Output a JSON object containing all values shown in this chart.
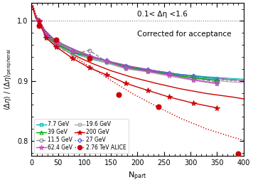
{
  "title_text1": "0.1< Δη <1.6",
  "title_text2": "Corrected for acceptance",
  "xlabel": "N$_\\mathrm{part}$",
  "ylabel": "$\\langle\\Delta\\eta\\rangle$ / $\\langle\\Delta\\eta\\rangle_{\\mathrm{peripheral}}$",
  "xlim": [
    0,
    400
  ],
  "ylim": [
    0.775,
    1.03
  ],
  "yticks": [
    0.8,
    0.9,
    1.0
  ],
  "xticks": [
    0,
    50,
    100,
    150,
    200,
    250,
    300,
    350,
    400
  ],
  "hline_y": 1.0,
  "series": [
    {
      "label": "7.7 GeV",
      "color": "#00bbbb",
      "linestyle": "-",
      "marker": "s",
      "markerfacecolor": "none",
      "markersize": 3.5,
      "linewidth": 1.0,
      "x": [
        14,
        28,
        46,
        77,
        109,
        142,
        178,
        220,
        260,
        305,
        350
      ],
      "y": [
        0.999,
        0.975,
        0.962,
        0.948,
        0.937,
        0.93,
        0.922,
        0.917,
        0.912,
        0.908,
        0.904
      ]
    },
    {
      "label": "11.5 GeV",
      "color": "#888888",
      "linestyle": "--",
      "marker": "o",
      "markerfacecolor": "none",
      "markersize": 3.5,
      "linewidth": 1.0,
      "x": [
        14,
        28,
        46,
        77,
        109,
        142,
        178,
        220,
        260,
        305,
        350
      ],
      "y": [
        0.997,
        0.972,
        0.958,
        0.944,
        0.951,
        0.932,
        0.921,
        0.918,
        0.912,
        0.905,
        0.898
      ]
    },
    {
      "label": "19.6 GeV",
      "color": "#aaaaaa",
      "linestyle": "-",
      "marker": "s",
      "markerfacecolor": "none",
      "markersize": 3.5,
      "linewidth": 1.0,
      "x": [
        14,
        28,
        46,
        77,
        109,
        142,
        178,
        220,
        260,
        305,
        350
      ],
      "y": [
        0.998,
        0.973,
        0.96,
        0.945,
        0.938,
        0.93,
        0.92,
        0.915,
        0.908,
        0.901,
        0.895
      ]
    },
    {
      "label": "27 GeV",
      "color": "#5555dd",
      "linestyle": ":",
      "marker": "D",
      "markerfacecolor": "none",
      "markersize": 3.5,
      "linewidth": 1.0,
      "x": [
        14,
        28,
        46,
        77,
        109,
        142,
        178,
        220,
        260,
        305,
        350
      ],
      "y": [
        1.0,
        0.976,
        0.963,
        0.949,
        0.941,
        0.934,
        0.924,
        0.919,
        0.913,
        0.908,
        0.901
      ]
    },
    {
      "label": "39 GeV",
      "color": "#00aa00",
      "linestyle": "-",
      "marker": "^",
      "markerfacecolor": "none",
      "markersize": 3.5,
      "linewidth": 1.0,
      "x": [
        14,
        28,
        46,
        77,
        109,
        142,
        178,
        220,
        260,
        305,
        350
      ],
      "y": [
        0.999,
        0.975,
        0.962,
        0.948,
        0.94,
        0.933,
        0.923,
        0.917,
        0.911,
        0.905,
        0.901
      ]
    },
    {
      "label": "62.4 GeV",
      "color": "#cc44cc",
      "linestyle": "-",
      "marker": "*",
      "markerfacecolor": "none",
      "markersize": 5.5,
      "linewidth": 1.0,
      "x": [
        14,
        28,
        46,
        77,
        109,
        142,
        178,
        220,
        260,
        305,
        350
      ],
      "y": [
        1.0,
        0.977,
        0.964,
        0.95,
        0.941,
        0.933,
        0.922,
        0.916,
        0.91,
        0.902,
        0.896
      ]
    },
    {
      "label": "200 GeV",
      "color": "#cc0000",
      "linestyle": "-",
      "marker": "*",
      "markerfacecolor": "#cc0000",
      "markersize": 5.5,
      "linewidth": 1.0,
      "x": [
        14,
        28,
        46,
        77,
        109,
        142,
        178,
        220,
        260,
        305,
        350
      ],
      "y": [
        0.999,
        0.972,
        0.957,
        0.938,
        0.922,
        0.91,
        0.896,
        0.884,
        0.873,
        0.863,
        0.855
      ]
    },
    {
      "label": "2.76 TeV ALICE",
      "color": "#cc0000",
      "linestyle": "none",
      "marker": "o",
      "markerfacecolor": "#cc0000",
      "markersize": 5.0,
      "linewidth": 0,
      "x": [
        14,
        46,
        109,
        165,
        240,
        390
      ],
      "y": [
        0.992,
        0.968,
        0.938,
        0.877,
        0.857,
        0.778
      ]
    }
  ],
  "fit_curves": [
    {
      "color": "#00bbbb",
      "linestyle": "-",
      "linewidth": 0.8,
      "x": [
        2,
        8,
        14,
        25,
        40,
        60,
        85,
        115,
        150,
        190,
        235,
        280,
        330,
        380,
        400
      ],
      "y": [
        1.025,
        1.008,
        1.0,
        0.984,
        0.971,
        0.96,
        0.95,
        0.94,
        0.93,
        0.922,
        0.916,
        0.911,
        0.907,
        0.904,
        0.903
      ]
    },
    {
      "color": "#888888",
      "linestyle": "--",
      "linewidth": 0.8,
      "x": [
        2,
        8,
        14,
        25,
        40,
        60,
        85,
        115,
        150,
        190,
        235,
        280,
        330,
        380,
        400
      ],
      "y": [
        1.022,
        1.006,
        0.998,
        0.982,
        0.969,
        0.958,
        0.948,
        0.938,
        0.928,
        0.92,
        0.914,
        0.908,
        0.903,
        0.9,
        0.899
      ]
    },
    {
      "color": "#aaaaaa",
      "linestyle": "-",
      "linewidth": 0.8,
      "x": [
        2,
        8,
        14,
        25,
        40,
        60,
        85,
        115,
        150,
        190,
        235,
        280,
        330,
        380,
        400
      ],
      "y": [
        1.023,
        1.006,
        0.999,
        0.982,
        0.97,
        0.958,
        0.948,
        0.938,
        0.928,
        0.92,
        0.913,
        0.907,
        0.902,
        0.898,
        0.897
      ]
    },
    {
      "color": "#5555dd",
      "linestyle": ":",
      "linewidth": 0.8,
      "x": [
        2,
        8,
        14,
        25,
        40,
        60,
        85,
        115,
        150,
        190,
        235,
        280,
        330,
        380,
        400
      ],
      "y": [
        1.026,
        1.009,
        1.001,
        0.985,
        0.972,
        0.961,
        0.951,
        0.941,
        0.932,
        0.924,
        0.917,
        0.911,
        0.906,
        0.902,
        0.901
      ]
    },
    {
      "color": "#00aa00",
      "linestyle": "-",
      "linewidth": 0.8,
      "x": [
        2,
        8,
        14,
        25,
        40,
        60,
        85,
        115,
        150,
        190,
        235,
        280,
        330,
        380,
        400
      ],
      "y": [
        1.025,
        1.008,
        1.0,
        0.984,
        0.971,
        0.96,
        0.95,
        0.94,
        0.931,
        0.923,
        0.916,
        0.91,
        0.905,
        0.902,
        0.901
      ]
    },
    {
      "color": "#cc44cc",
      "linestyle": "-",
      "linewidth": 0.8,
      "x": [
        2,
        8,
        14,
        25,
        40,
        60,
        85,
        115,
        150,
        190,
        235,
        280,
        330,
        380,
        400
      ],
      "y": [
        1.026,
        1.009,
        1.001,
        0.985,
        0.972,
        0.961,
        0.951,
        0.941,
        0.932,
        0.924,
        0.917,
        0.911,
        0.906,
        0.902,
        0.901
      ]
    },
    {
      "color": "#cc0000",
      "linestyle": "-",
      "linewidth": 1.0,
      "x": [
        2,
        8,
        14,
        25,
        40,
        60,
        85,
        115,
        150,
        190,
        235,
        280,
        330,
        380,
        400
      ],
      "y": [
        1.024,
        1.005,
        0.997,
        0.98,
        0.966,
        0.953,
        0.941,
        0.929,
        0.917,
        0.906,
        0.896,
        0.887,
        0.879,
        0.873,
        0.87
      ]
    },
    {
      "color": "#cc0000",
      "linestyle": ":",
      "linewidth": 1.0,
      "x": [
        2,
        8,
        14,
        25,
        40,
        60,
        85,
        115,
        150,
        190,
        235,
        280,
        330,
        380,
        400
      ],
      "y": [
        1.03,
        1.012,
        1.003,
        0.985,
        0.969,
        0.954,
        0.938,
        0.921,
        0.901,
        0.879,
        0.858,
        0.838,
        0.82,
        0.806,
        0.801
      ]
    }
  ],
  "legend_loc": "lower left",
  "background_color": "#ffffff"
}
